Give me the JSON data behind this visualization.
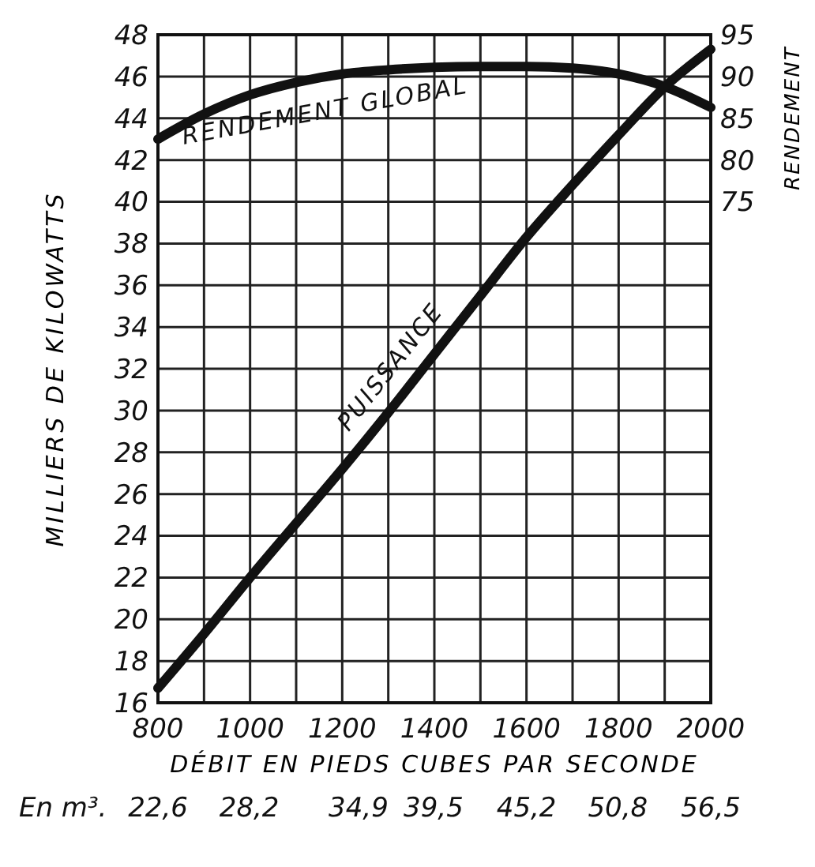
{
  "chart_data": {
    "type": "line",
    "xlabel": "DÉBIT EN PIEDS CUBES PAR SECONDE",
    "ylabel": "MILLIERS DE KILOWATTS",
    "y2label": "RENDEMENT",
    "x2label": "En m³.",
    "x": [
      800,
      900,
      1000,
      1100,
      1200,
      1300,
      1400,
      1500,
      1600,
      1700,
      1800,
      1900,
      2000
    ],
    "series": [
      {
        "name": "RENDEMENT GLOBAL",
        "color": "#111111",
        "axis": "y2",
        "values": [
          82.5,
          85.5,
          87.8,
          89.3,
          90.3,
          90.8,
          91.1,
          91.2,
          91.2,
          91.0,
          90.3,
          88.8,
          86.3
        ]
      },
      {
        "name": "PUISSANCE",
        "color": "#111111",
        "values": [
          16.7,
          19.3,
          22.0,
          24.6,
          27.2,
          29.9,
          32.7,
          35.5,
          38.3,
          40.8,
          43.2,
          45.5,
          47.3
        ]
      }
    ],
    "xlim": [
      800,
      2000
    ],
    "xticks": [
      800,
      {
        "value": 900,
        "label": null
      },
      1000,
      {
        "value": 1100,
        "label": null
      },
      1200,
      {
        "value": 1300,
        "label": null
      },
      1400,
      {
        "value": 1500,
        "label": null
      },
      1600,
      {
        "value": 1700,
        "label": null
      },
      1800,
      {
        "value": 1900,
        "label": null
      },
      2000
    ],
    "x2lim": [
      22.6,
      56.5
    ],
    "x2ticks": [
      {
        "value": 22.6,
        "label": "22,6"
      },
      {
        "value": 28.2,
        "label": "28,2"
      },
      {
        "value": 34.9,
        "label": "34,9"
      },
      {
        "value": 39.5,
        "label": "39,5"
      },
      {
        "value": 45.2,
        "label": "45,2"
      },
      {
        "value": 50.8,
        "label": "50,8"
      },
      {
        "value": 56.5,
        "label": "56,5"
      }
    ],
    "ylim": [
      16,
      48
    ],
    "yticks": [
      16,
      18,
      20,
      22,
      24,
      26,
      28,
      30,
      32,
      34,
      36,
      38,
      40,
      42,
      44,
      46,
      48
    ],
    "y2lim": [
      15,
      95
    ],
    "y2ticks": [
      75,
      80,
      85,
      90,
      95
    ],
    "grid": true,
    "marker": "none",
    "line_style": "solid"
  }
}
